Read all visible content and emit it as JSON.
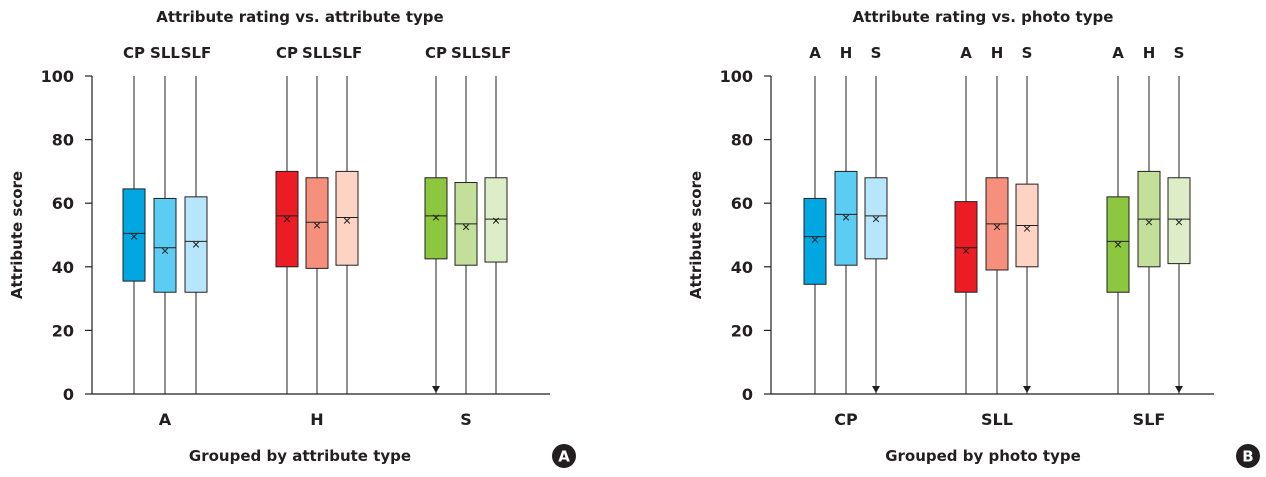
{
  "chart_data": [
    {
      "type": "box",
      "panel": "A",
      "title": "Attribute rating vs. attribute type",
      "xlabel": "Grouped by attribute type",
      "ylabel": "Attribute score",
      "ylim": [
        0,
        100
      ],
      "yticks": [
        0,
        20,
        40,
        60,
        80,
        100
      ],
      "categories": [
        "A",
        "H",
        "S"
      ],
      "sub_categories": [
        "CP",
        "SLL",
        "SLF"
      ],
      "groups": [
        {
          "label": "A",
          "boxes": [
            {
              "label": "CP",
              "color": "#00a7e1",
              "min": 0,
              "q1": 35.5,
              "median": 50.5,
              "mean": 49.5,
              "q3": 64.5,
              "max": 100,
              "min_arrow": false
            },
            {
              "label": "SLL",
              "color": "#5ccdf2",
              "min": 0,
              "q1": 32,
              "median": 46,
              "mean": 45,
              "q3": 61.5,
              "max": 100,
              "min_arrow": false
            },
            {
              "label": "SLF",
              "color": "#b7e6fb",
              "min": 0,
              "q1": 32,
              "median": 48,
              "mean": 47,
              "q3": 62,
              "max": 100,
              "min_arrow": false
            }
          ]
        },
        {
          "label": "H",
          "boxes": [
            {
              "label": "CP",
              "color": "#ec1c24",
              "min": 0,
              "q1": 40,
              "median": 56,
              "mean": 55,
              "q3": 70,
              "max": 100,
              "min_arrow": false
            },
            {
              "label": "SLL",
              "color": "#f5907d",
              "min": 0,
              "q1": 39.5,
              "median": 54,
              "mean": 53,
              "q3": 68,
              "max": 100,
              "min_arrow": false
            },
            {
              "label": "SLF",
              "color": "#fdd3c3",
              "min": 0,
              "q1": 40.5,
              "median": 55.5,
              "mean": 54.5,
              "q3": 70,
              "max": 100,
              "min_arrow": false
            }
          ]
        },
        {
          "label": "S",
          "boxes": [
            {
              "label": "CP",
              "color": "#8dc63f",
              "min": 0,
              "q1": 42.5,
              "median": 56,
              "mean": 55.5,
              "q3": 68,
              "max": 100,
              "min_arrow": true
            },
            {
              "label": "SLL",
              "color": "#c3e09a",
              "min": 0,
              "q1": 40.5,
              "median": 53.5,
              "mean": 52.5,
              "q3": 66.5,
              "max": 100,
              "min_arrow": false
            },
            {
              "label": "SLF",
              "color": "#dcedc7",
              "min": 0,
              "q1": 41.5,
              "median": 55,
              "mean": 54.5,
              "q3": 68,
              "max": 100,
              "min_arrow": false
            }
          ]
        }
      ],
      "badge": "A"
    },
    {
      "type": "box",
      "panel": "B",
      "title": "Attribute rating vs. photo type",
      "xlabel": "Grouped by photo type",
      "ylabel": "Attribute score",
      "ylim": [
        0,
        100
      ],
      "yticks": [
        0,
        20,
        40,
        60,
        80,
        100
      ],
      "categories": [
        "CP",
        "SLL",
        "SLF"
      ],
      "sub_categories": [
        "A",
        "H",
        "S"
      ],
      "groups": [
        {
          "label": "CP",
          "boxes": [
            {
              "label": "A",
              "color": "#00a7e1",
              "min": 0,
              "q1": 34.5,
              "median": 49.5,
              "mean": 48.5,
              "q3": 61.5,
              "max": 100,
              "min_arrow": false
            },
            {
              "label": "H",
              "color": "#5ccdf2",
              "min": 0,
              "q1": 40.5,
              "median": 56.5,
              "mean": 55.5,
              "q3": 70,
              "max": 100,
              "min_arrow": false
            },
            {
              "label": "S",
              "color": "#b7e6fb",
              "min": 0,
              "q1": 42.5,
              "median": 56,
              "mean": 55,
              "q3": 68,
              "max": 100,
              "min_arrow": true
            }
          ]
        },
        {
          "label": "SLL",
          "boxes": [
            {
              "label": "A",
              "color": "#ec1c24",
              "min": 0,
              "q1": 32,
              "median": 46,
              "mean": 45,
              "q3": 60.5,
              "max": 100,
              "min_arrow": false
            },
            {
              "label": "H",
              "color": "#f5907d",
              "min": 0,
              "q1": 39,
              "median": 53.5,
              "mean": 52.5,
              "q3": 68,
              "max": 100,
              "min_arrow": false
            },
            {
              "label": "S",
              "color": "#fdd3c3",
              "min": 0,
              "q1": 40,
              "median": 53,
              "mean": 52,
              "q3": 66,
              "max": 100,
              "min_arrow": true
            }
          ]
        },
        {
          "label": "SLF",
          "boxes": [
            {
              "label": "A",
              "color": "#8dc63f",
              "min": 0,
              "q1": 32,
              "median": 48,
              "mean": 47,
              "q3": 62,
              "max": 100,
              "min_arrow": false
            },
            {
              "label": "H",
              "color": "#c3e09a",
              "min": 0,
              "q1": 40,
              "median": 55,
              "mean": 54,
              "q3": 70,
              "max": 100,
              "min_arrow": false
            },
            {
              "label": "S",
              "color": "#dcedc7",
              "min": 0,
              "q1": 41,
              "median": 55,
              "mean": 54,
              "q3": 68,
              "max": 100,
              "min_arrow": true
            }
          ]
        }
      ],
      "badge": "B"
    }
  ]
}
